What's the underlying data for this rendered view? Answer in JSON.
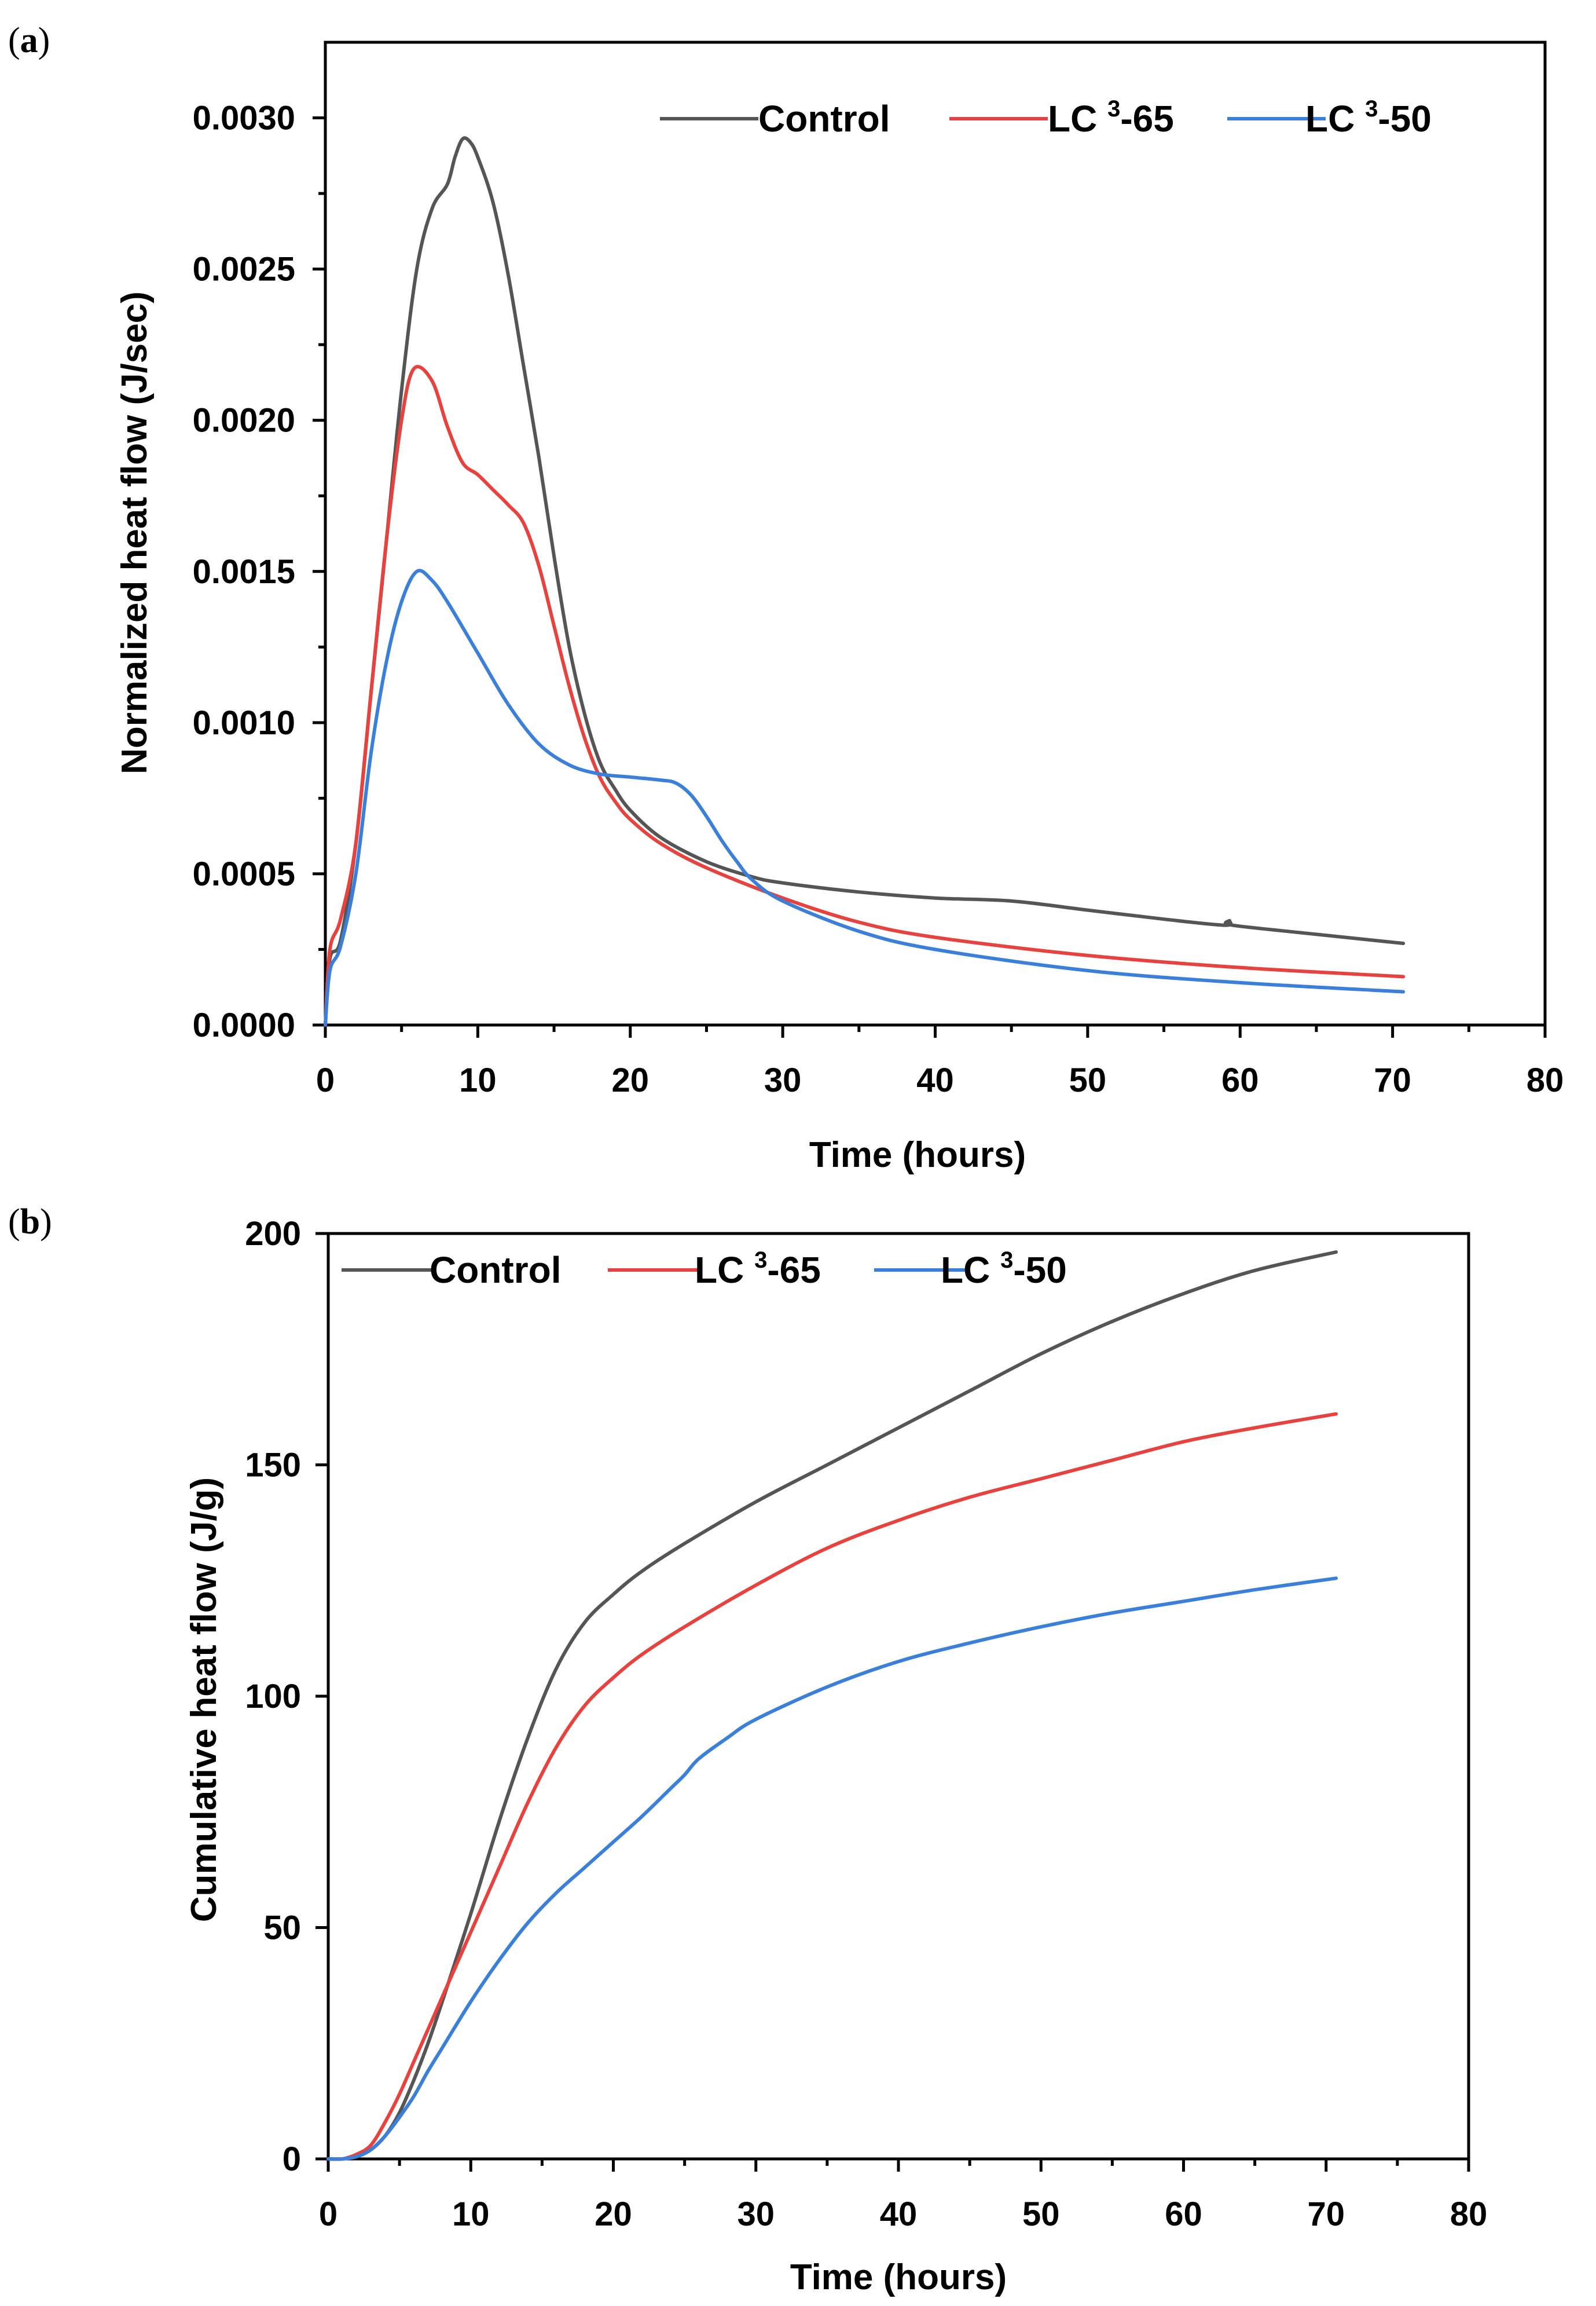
{
  "figure": {
    "panel_a_label_open": "(",
    "panel_a_label_letter": "a",
    "panel_a_label_close": ")",
    "panel_b_label_open": "(",
    "panel_b_label_letter": "b",
    "panel_b_label_close": ")"
  },
  "chart_data": [
    {
      "type": "line",
      "panel": "a",
      "xlabel": "Time (hours)",
      "ylabel": "Normalized heat flow (J/sec)",
      "xlim": [
        0,
        80
      ],
      "ylim": [
        0,
        0.00325
      ],
      "xticks": [
        0,
        10,
        20,
        30,
        40,
        50,
        60,
        70,
        80
      ],
      "xtick_labels": [
        "0",
        "10",
        "20",
        "30",
        "40",
        "50",
        "60",
        "70",
        "80"
      ],
      "yticks": [
        0,
        0.0005,
        0.001,
        0.0015,
        0.002,
        0.0025,
        0.003
      ],
      "ytick_labels": [
        "0.0000",
        "0.0005",
        "0.0010",
        "0.0015",
        "0.0020",
        "0.0025",
        "0.0030"
      ],
      "legend_position": "top-right",
      "series": [
        {
          "name": "Control",
          "label_prefix": "Control",
          "label_sup": "",
          "label_suffix": "",
          "color": "#555555",
          "x": [
            0,
            0.3,
            1,
            2,
            3,
            4,
            5,
            6,
            7,
            8,
            8.5,
            9,
            9.5,
            10,
            11,
            12,
            13,
            14,
            15,
            16,
            17,
            18,
            19,
            20,
            22,
            25,
            28,
            30,
            35,
            40,
            45,
            50,
            55,
            59,
            59.3,
            59.5,
            65,
            70.7
          ],
          "y": [
            0,
            0.00022,
            0.00028,
            0.0006,
            0.0011,
            0.0016,
            0.0021,
            0.0025,
            0.0027,
            0.00278,
            0.00287,
            0.00293,
            0.00292,
            0.00287,
            0.00272,
            0.00248,
            0.00218,
            0.00188,
            0.00155,
            0.00125,
            0.00103,
            0.00087,
            0.00078,
            0.00071,
            0.00062,
            0.00054,
            0.00049,
            0.00047,
            0.00044,
            0.00042,
            0.00041,
            0.00038,
            0.00035,
            0.00033,
            0.000345,
            0.00033,
            0.0003,
            0.00027
          ]
        },
        {
          "name": "LC3-65",
          "label_prefix": "LC ",
          "label_sup": "3",
          "label_suffix": "-65",
          "color": "#e8423e",
          "x": [
            0,
            0.3,
            1,
            2,
            3,
            4,
            5,
            5.8,
            7,
            8,
            9,
            10,
            11,
            12,
            13,
            14,
            15,
            16,
            17,
            18,
            19,
            20,
            22,
            25,
            30,
            35,
            40,
            50,
            60,
            70.7
          ],
          "y": [
            0,
            0.00025,
            0.00035,
            0.0006,
            0.0011,
            0.0016,
            0.002,
            0.00217,
            0.00213,
            0.00198,
            0.00186,
            0.00182,
            0.00177,
            0.00172,
            0.00166,
            0.00152,
            0.00132,
            0.00112,
            0.00095,
            0.00082,
            0.00074,
            0.00068,
            0.0006,
            0.00052,
            0.00042,
            0.00034,
            0.00029,
            0.00023,
            0.00019,
            0.00016
          ]
        },
        {
          "name": "LC3-50",
          "label_prefix": "LC ",
          "label_sup": "3",
          "label_suffix": "-50",
          "color": "#3a7fd9",
          "x": [
            0,
            0.3,
            1,
            2,
            3,
            4,
            5,
            6,
            7,
            8,
            10,
            12,
            14,
            16,
            18,
            20,
            22,
            23,
            24,
            25,
            26,
            27,
            28,
            30,
            35,
            40,
            50,
            60,
            70.7
          ],
          "y": [
            0,
            0.00018,
            0.00026,
            0.0005,
            0.0009,
            0.0012,
            0.0014,
            0.0015,
            0.00147,
            0.0014,
            0.00123,
            0.00106,
            0.00093,
            0.00086,
            0.00083,
            0.00082,
            0.00081,
            0.0008,
            0.00076,
            0.00069,
            0.00061,
            0.00054,
            0.00048,
            0.00041,
            0.00031,
            0.00025,
            0.00018,
            0.00014,
            0.00011
          ]
        }
      ]
    },
    {
      "type": "line",
      "panel": "b",
      "xlabel": "Time (hours)",
      "ylabel": "Cumulative heat flow (J/g)",
      "xlim": [
        0,
        80
      ],
      "ylim": [
        0,
        200
      ],
      "xticks": [
        0,
        10,
        20,
        30,
        40,
        50,
        60,
        70,
        80
      ],
      "xtick_labels": [
        "0",
        "10",
        "20",
        "30",
        "40",
        "50",
        "60",
        "70",
        "80"
      ],
      "yticks": [
        0,
        50,
        100,
        150,
        200
      ],
      "ytick_labels": [
        "0",
        "50",
        "100",
        "150",
        "200"
      ],
      "legend_position": "top-left",
      "series": [
        {
          "name": "Control",
          "label_prefix": "Control",
          "label_sup": "",
          "label_suffix": "",
          "color": "#555555",
          "x": [
            0,
            1,
            2,
            3,
            4,
            5,
            6,
            7,
            8,
            10,
            12,
            14,
            16,
            18,
            20,
            22,
            25,
            30,
            35,
            40,
            45,
            50,
            55,
            60,
            65,
            70.7
          ],
          "y": [
            0,
            0,
            0.5,
            2,
            5,
            10,
            17,
            25,
            34,
            53,
            73,
            91,
            106,
            116,
            122,
            127,
            133,
            142,
            150,
            158,
            166,
            174,
            181,
            187,
            192,
            196
          ]
        },
        {
          "name": "LC3-65",
          "label_prefix": "LC ",
          "label_sup": "3",
          "label_suffix": "-65",
          "color": "#e8423e",
          "x": [
            0,
            1,
            2,
            3,
            4,
            5,
            6,
            7,
            8,
            10,
            12,
            14,
            16,
            18,
            20,
            22,
            25,
            30,
            35,
            40,
            45,
            50,
            55,
            60,
            65,
            70.7
          ],
          "y": [
            0,
            0,
            1,
            3,
            8,
            14,
            21,
            28,
            35,
            49,
            63,
            77,
            89,
            98,
            104,
            109,
            115,
            124,
            132,
            138,
            143,
            147,
            151,
            155,
            158,
            161
          ]
        },
        {
          "name": "LC3-50",
          "label_prefix": "LC ",
          "label_sup": "3",
          "label_suffix": "-50",
          "color": "#3a7fd9",
          "x": [
            0,
            1,
            2,
            3,
            4,
            5,
            6,
            7,
            8,
            10,
            12,
            14,
            16,
            18,
            20,
            22,
            24,
            25,
            26,
            28,
            30,
            35,
            40,
            45,
            50,
            55,
            60,
            65,
            70.7
          ],
          "y": [
            0,
            0,
            0.5,
            2,
            5,
            9,
            13.5,
            19,
            24,
            34,
            43,
            51,
            57.5,
            63,
            68.5,
            74,
            80,
            83,
            86.5,
            91,
            95,
            102,
            107.5,
            111.5,
            115,
            118,
            120.5,
            123,
            125.5
          ]
        }
      ]
    }
  ]
}
